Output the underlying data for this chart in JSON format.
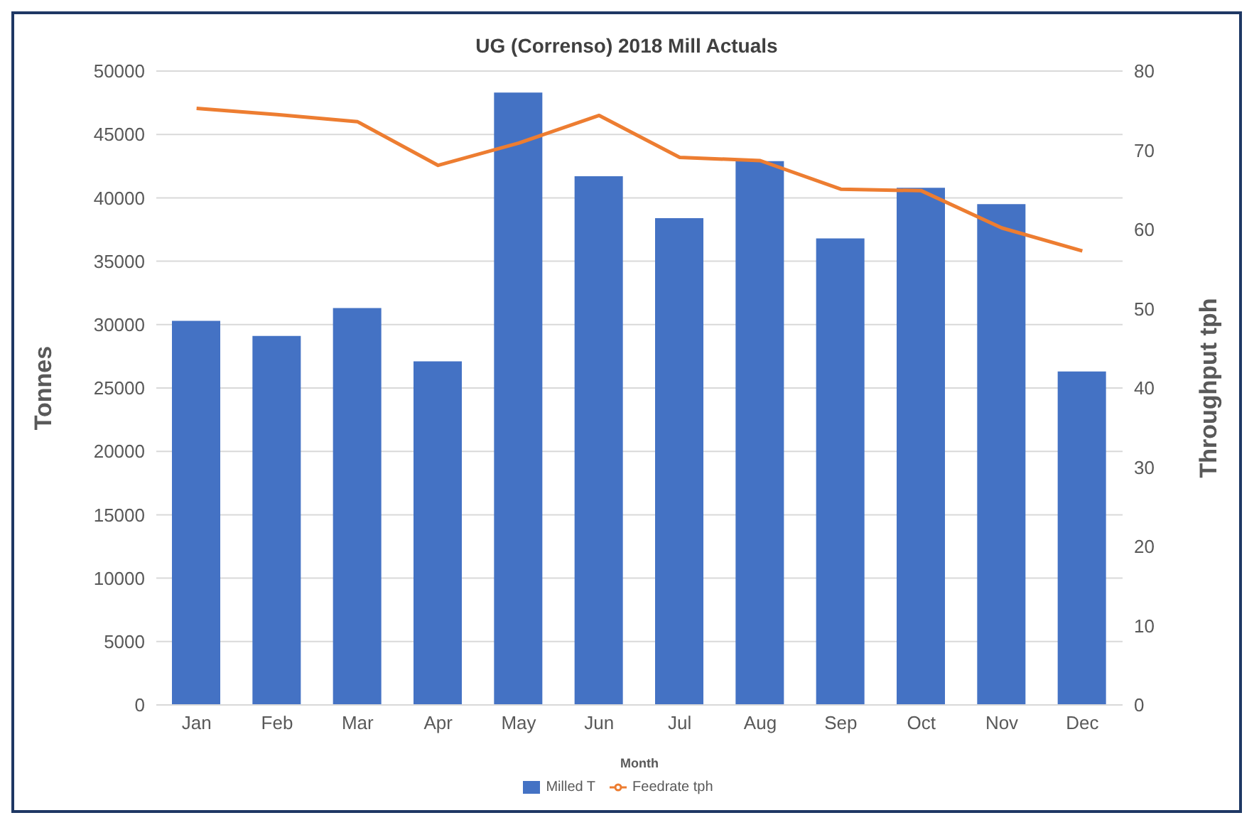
{
  "chart_data": {
    "type": "bar",
    "title": "UG (Correnso) 2018 Mill Actuals",
    "xlabel": "Month",
    "ylabel": "Tonnes",
    "y2label": "Throughput  tph",
    "categories": [
      "Jan",
      "Feb",
      "Mar",
      "Apr",
      "May",
      "Jun",
      "Jul",
      "Aug",
      "Sep",
      "Oct",
      "Nov",
      "Dec"
    ],
    "series": [
      {
        "name": "Milled T",
        "color": "#4472c4",
        "values": [
          30300,
          29100,
          31300,
          27100,
          48300,
          41700,
          38400,
          42900,
          36800,
          40800,
          39500,
          26300
        ]
      },
      {
        "name": "Feedrate tph",
        "type": "line",
        "axis": "y2",
        "color": "#ed7d31",
        "values": [
          75.3,
          74.5,
          73.6,
          68.1,
          70.9,
          74.4,
          69.1,
          68.7,
          65.1,
          64.9,
          60.2,
          57.3
        ]
      }
    ],
    "ylim": [
      0,
      50000
    ],
    "yticks": [
      0,
      5000,
      10000,
      15000,
      20000,
      25000,
      30000,
      35000,
      40000,
      45000,
      50000
    ],
    "y2lim": [
      0,
      80
    ],
    "y2ticks": [
      0,
      10,
      20,
      30,
      40,
      50,
      60,
      70,
      80
    ],
    "grid": "y",
    "legend": "bottom",
    "marker": "none"
  }
}
